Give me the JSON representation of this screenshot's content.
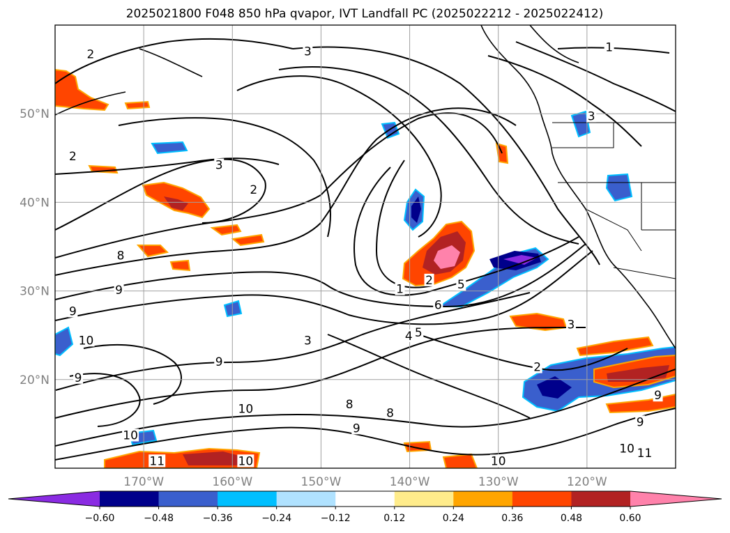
{
  "title": "2025021800 F048 850 hPa qvapor, IVT Landfall PC (2025022212 - 2025022412)",
  "map": {
    "lon_range": [
      -180,
      -110
    ],
    "lat_range": [
      10,
      60
    ],
    "lat_ticks": [
      {
        "value": 50,
        "label": "50°N"
      },
      {
        "value": 40,
        "label": "40°N"
      },
      {
        "value": 30,
        "label": "30°N"
      },
      {
        "value": 20,
        "label": "20°N"
      }
    ],
    "lon_ticks": [
      {
        "value": -170,
        "label": "170°W"
      },
      {
        "value": -160,
        "label": "160°W"
      },
      {
        "value": -150,
        "label": "150°W"
      },
      {
        "value": -140,
        "label": "140°W"
      },
      {
        "value": -130,
        "label": "130°W"
      },
      {
        "value": -120,
        "label": "120°W"
      }
    ],
    "gridlines": true
  },
  "colorbar": {
    "colors": [
      "#8a2be2",
      "#00008b",
      "#3a5fcd",
      "#00bfff",
      "#b0e2ff",
      "#ffffff",
      "#ffec8b",
      "#ffa500",
      "#ff4500",
      "#b22222",
      "#ff82ab"
    ],
    "ticks": [
      "−0.60",
      "−0.48",
      "−0.36",
      "−0.24",
      "−0.12",
      "0.12",
      "0.24",
      "0.36",
      "0.48",
      "0.60"
    ],
    "extend": "both"
  },
  "contour_labels": [
    {
      "text": "3",
      "lon": -151.5,
      "lat": 56.8
    },
    {
      "text": "2",
      "lon": -176,
      "lat": 56.5
    },
    {
      "text": "1",
      "lon": -117.5,
      "lat": 57.3
    },
    {
      "text": "3",
      "lon": -119.5,
      "lat": 49.5
    },
    {
      "text": "2",
      "lon": -178,
      "lat": 45.0
    },
    {
      "text": "3",
      "lon": -161.5,
      "lat": 44.0
    },
    {
      "text": "2",
      "lon": -157.6,
      "lat": 41.2
    },
    {
      "text": "1",
      "lon": -141.1,
      "lat": 30.0
    },
    {
      "text": "2",
      "lon": -137.8,
      "lat": 31.0
    },
    {
      "text": "5",
      "lon": -134.2,
      "lat": 30.5
    },
    {
      "text": "6",
      "lon": -136.8,
      "lat": 28.2
    },
    {
      "text": "3",
      "lon": -151.5,
      "lat": 24.2
    },
    {
      "text": "4",
      "lon": -140.1,
      "lat": 24.7
    },
    {
      "text": "5",
      "lon": -139.0,
      "lat": 25.1
    },
    {
      "text": "3",
      "lon": -121.8,
      "lat": 26.0
    },
    {
      "text": "2",
      "lon": -125.6,
      "lat": 21.2
    },
    {
      "text": "8",
      "lon": -172.6,
      "lat": 33.8
    },
    {
      "text": "9",
      "lon": -172.8,
      "lat": 29.9
    },
    {
      "text": "9",
      "lon": -178.0,
      "lat": 27.5
    },
    {
      "text": "10",
      "lon": -176.5,
      "lat": 24.2
    },
    {
      "text": "9",
      "lon": -177.4,
      "lat": 20.0
    },
    {
      "text": "9",
      "lon": -161.5,
      "lat": 21.8
    },
    {
      "text": "10",
      "lon": -158.5,
      "lat": 16.5
    },
    {
      "text": "10",
      "lon": -171.5,
      "lat": 13.5
    },
    {
      "text": "9",
      "lon": -146.0,
      "lat": 14.3
    },
    {
      "text": "9",
      "lon": -114.0,
      "lat": 15.0
    },
    {
      "text": "10",
      "lon": -115.5,
      "lat": 12.0
    },
    {
      "text": "11",
      "lon": -113.5,
      "lat": 11.5
    },
    {
      "text": "10",
      "lon": -130.0,
      "lat": 10.6
    },
    {
      "text": "11",
      "lon": -168.5,
      "lat": 10.6
    },
    {
      "text": "10",
      "lon": -158.5,
      "lat": 10.6
    },
    {
      "text": "8",
      "lon": -146.8,
      "lat": 17.0
    },
    {
      "text": "9",
      "lon": -112.0,
      "lat": 18.0
    },
    {
      "text": "8",
      "lon": -142.2,
      "lat": 16.0
    }
  ]
}
